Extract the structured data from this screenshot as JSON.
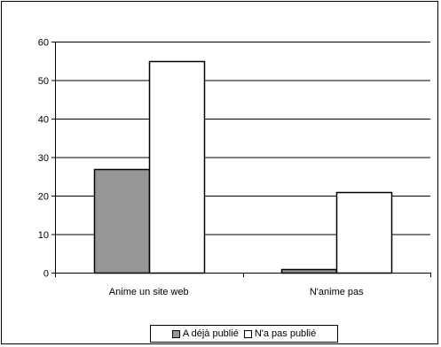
{
  "chart_data": {
    "type": "bar",
    "categories": [
      "Anime un site web",
      "N'anime pas"
    ],
    "series": [
      {
        "name": "A déjà publié",
        "values": [
          27,
          1
        ],
        "color": "#969696"
      },
      {
        "name": "N'a pas publié",
        "values": [
          55,
          21
        ],
        "color": "#ffffff"
      }
    ],
    "ylim": [
      0,
      60
    ],
    "yticks": [
      0,
      10,
      20,
      30,
      40,
      50,
      60
    ],
    "grid": true,
    "legend_position": "bottom"
  }
}
